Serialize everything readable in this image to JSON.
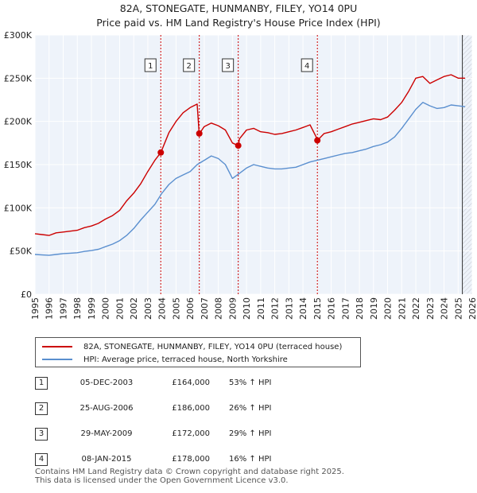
{
  "chart_data": {
    "type": "line",
    "title": "82A, STONEGATE, HUNMANBY, FILEY, YO14 0PU",
    "subtitle": "Price paid vs. HM Land Registry's House Price Index (HPI)",
    "xlim": [
      1995,
      2026
    ],
    "ylim": [
      0,
      300000
    ],
    "x_ticks": [
      1995,
      1996,
      1997,
      1998,
      1999,
      2000,
      2001,
      2002,
      2003,
      2004,
      2005,
      2006,
      2007,
      2008,
      2009,
      2010,
      2011,
      2012,
      2013,
      2014,
      2015,
      2016,
      2017,
      2018,
      2019,
      2020,
      2021,
      2022,
      2023,
      2024,
      2025,
      2026
    ],
    "y_ticks": [
      {
        "value": 0,
        "label": "£0"
      },
      {
        "value": 50000,
        "label": "£50K"
      },
      {
        "value": 100000,
        "label": "£100K"
      },
      {
        "value": 150000,
        "label": "£150K"
      },
      {
        "value": 200000,
        "label": "£200K"
      },
      {
        "value": 250000,
        "label": "£250K"
      },
      {
        "value": 300000,
        "label": "£300K"
      }
    ],
    "grid": true,
    "forecast_from": 2025.3,
    "series": [
      {
        "name": "82A, STONEGATE, HUNMANBY, FILEY, YO14 0PU (terraced house)",
        "color": "#cc0000",
        "x": [
          1995.0,
          1995.5,
          1996.0,
          1996.5,
          1997.0,
          1997.5,
          1998.0,
          1998.5,
          1999.0,
          1999.5,
          2000.0,
          2000.5,
          2001.0,
          2001.5,
          2002.0,
          2002.5,
          2003.0,
          2003.5,
          2003.92,
          2004.5,
          2005.0,
          2005.5,
          2006.0,
          2006.5,
          2006.64,
          2006.66,
          2007.0,
          2007.5,
          2008.0,
          2008.5,
          2009.0,
          2009.41,
          2009.5,
          2010.0,
          2010.5,
          2011.0,
          2011.5,
          2012.0,
          2012.5,
          2013.0,
          2013.5,
          2014.0,
          2014.5,
          2015.0,
          2015.02,
          2015.5,
          2016.0,
          2016.5,
          2017.0,
          2017.5,
          2018.0,
          2018.5,
          2019.0,
          2019.5,
          2020.0,
          2020.5,
          2021.0,
          2021.5,
          2022.0,
          2022.5,
          2023.0,
          2023.5,
          2024.0,
          2024.5,
          2025.0,
          2025.5
        ],
        "y": [
          70000,
          69000,
          68000,
          71000,
          72000,
          73000,
          74000,
          77000,
          79000,
          82000,
          87000,
          91000,
          97000,
          108000,
          117000,
          128000,
          142000,
          155000,
          164000,
          187000,
          200000,
          210000,
          216000,
          220000,
          186000,
          186000,
          194000,
          198000,
          195000,
          190000,
          175000,
          172000,
          180000,
          190000,
          192000,
          188000,
          187000,
          185000,
          186000,
          188000,
          190000,
          193000,
          196000,
          180000,
          178000,
          186000,
          188000,
          191000,
          194000,
          197000,
          199000,
          201000,
          203000,
          202000,
          205000,
          213000,
          222000,
          235000,
          250000,
          252000,
          244000,
          248000,
          252000,
          254000,
          250000,
          250000
        ]
      },
      {
        "name": "HPI: Average price, terraced house, North Yorkshire",
        "color": "#5a8fcf",
        "x": [
          1995.0,
          1995.5,
          1996.0,
          1996.5,
          1997.0,
          1997.5,
          1998.0,
          1998.5,
          1999.0,
          1999.5,
          2000.0,
          2000.5,
          2001.0,
          2001.5,
          2002.0,
          2002.5,
          2003.0,
          2003.5,
          2004.0,
          2004.5,
          2005.0,
          2005.5,
          2006.0,
          2006.5,
          2007.0,
          2007.5,
          2008.0,
          2008.5,
          2009.0,
          2009.5,
          2010.0,
          2010.5,
          2011.0,
          2011.5,
          2012.0,
          2012.5,
          2013.0,
          2013.5,
          2014.0,
          2014.5,
          2015.0,
          2015.5,
          2016.0,
          2016.5,
          2017.0,
          2017.5,
          2018.0,
          2018.5,
          2019.0,
          2019.5,
          2020.0,
          2020.5,
          2021.0,
          2021.5,
          2022.0,
          2022.5,
          2023.0,
          2023.5,
          2024.0,
          2024.5,
          2025.0,
          2025.5
        ],
        "y": [
          46000,
          45500,
          45000,
          46000,
          47000,
          47500,
          48000,
          49500,
          50500,
          52000,
          55000,
          58000,
          62000,
          68000,
          76000,
          86000,
          95000,
          104000,
          117000,
          127000,
          134000,
          138000,
          142000,
          150000,
          155000,
          160000,
          157000,
          150000,
          134000,
          140000,
          146000,
          150000,
          148000,
          146000,
          145000,
          145000,
          146000,
          147000,
          150000,
          153000,
          155000,
          157000,
          159000,
          161000,
          163000,
          164000,
          166000,
          168000,
          171000,
          173000,
          176000,
          182000,
          192000,
          203000,
          214000,
          222000,
          218000,
          215000,
          216000,
          219000,
          218000,
          217000
        ]
      }
    ],
    "sales": [
      {
        "num": "1",
        "x": 2003.92,
        "price": 164000
      },
      {
        "num": "2",
        "x": 2006.65,
        "price": 186000
      },
      {
        "num": "3",
        "x": 2009.41,
        "price": 172000
      },
      {
        "num": "4",
        "x": 2015.02,
        "price": 178000
      }
    ],
    "colors": {
      "bg": "#eef3fa",
      "grid": "#ffffff",
      "sale_line": "#cc0000",
      "hpi_line": "#5a8fcf"
    }
  },
  "legend": {
    "property_label": "82A, STONEGATE, HUNMANBY, FILEY, YO14 0PU (terraced house)",
    "hpi_label": "HPI: Average price, terraced house, North Yorkshire"
  },
  "sales_table": [
    {
      "num": "1",
      "date": "05-DEC-2003",
      "price": "£164,000",
      "hpi": "53% ↑ HPI"
    },
    {
      "num": "2",
      "date": "25-AUG-2006",
      "price": "£186,000",
      "hpi": "26% ↑ HPI"
    },
    {
      "num": "3",
      "date": "29-MAY-2009",
      "price": "£172,000",
      "hpi": "29% ↑ HPI"
    },
    {
      "num": "4",
      "date": "08-JAN-2015",
      "price": "£178,000",
      "hpi": "16% ↑ HPI"
    }
  ],
  "footer": {
    "line1": "Contains HM Land Registry data © Crown copyright and database right 2025.",
    "line2": "This data is licensed under the Open Government Licence v3.0."
  }
}
